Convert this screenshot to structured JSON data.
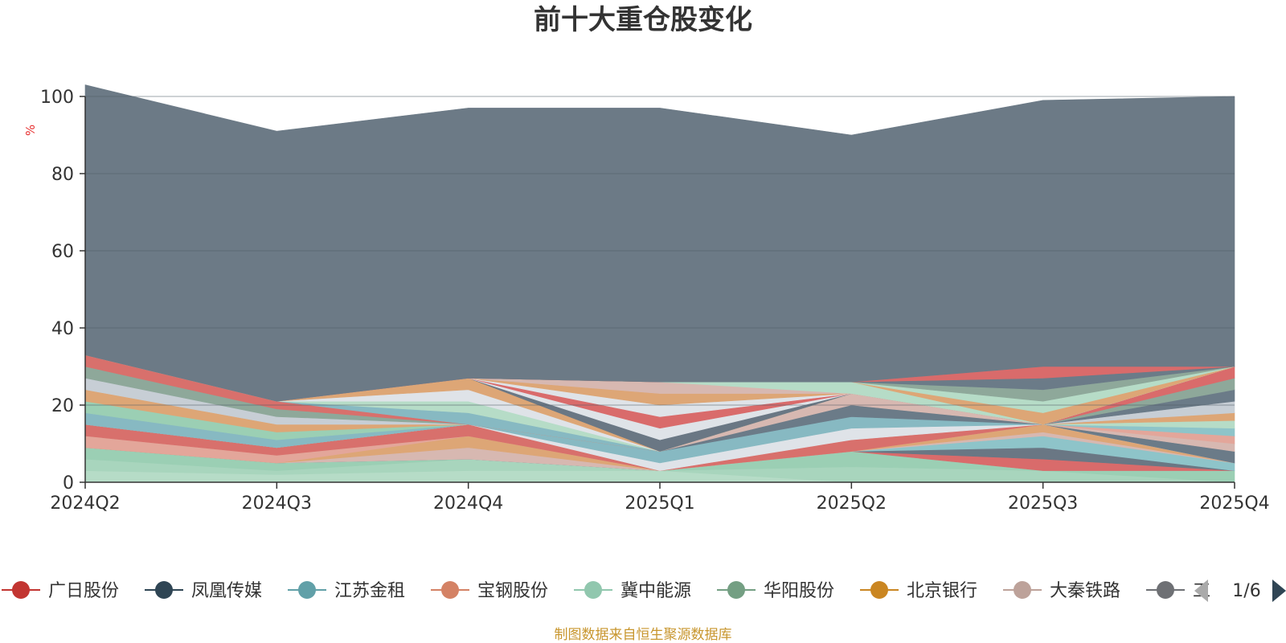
{
  "chart_data": {
    "type": "area",
    "title": "前十大重仓股变化",
    "ylabel": "%",
    "ylim": [
      0,
      100
    ],
    "yticks": [
      0,
      20,
      40,
      60,
      80,
      100
    ],
    "grid": true,
    "categories": [
      "2024Q2",
      "2024Q3",
      "2024Q4",
      "2025Q1",
      "2025Q2",
      "2025Q3",
      "2025Q4"
    ],
    "stacked_series": [
      {
        "values": [
          3,
          2,
          3,
          3,
          0,
          0,
          0
        ],
        "color": "#b6dcc7"
      },
      {
        "values": [
          3,
          1,
          3,
          0,
          4,
          3,
          0
        ],
        "color": "#a8d5bd"
      },
      {
        "values": [
          3,
          2,
          0,
          0,
          4,
          0,
          3
        ],
        "color": "#9bcfb4"
      },
      {
        "values": [
          0,
          0,
          0,
          0,
          0,
          3,
          0
        ],
        "color": "#d96b6b"
      },
      {
        "values": [
          0,
          0,
          0,
          0,
          0,
          3,
          0
        ],
        "color": "#6a7784"
      },
      {
        "values": [
          0,
          0,
          0,
          0,
          0,
          3,
          2
        ],
        "color": "#8ec4c9"
      },
      {
        "values": [
          0,
          0,
          3,
          0,
          0,
          1,
          0
        ],
        "color": "#d7b8b1"
      },
      {
        "values": [
          0,
          0,
          3,
          0,
          0,
          2,
          0
        ],
        "color": "#dda676"
      },
      {
        "values": [
          3,
          2,
          0,
          0,
          0,
          0,
          0
        ],
        "color": "#e3a69a"
      },
      {
        "values": [
          3,
          2,
          3,
          0,
          3,
          0,
          0
        ],
        "color": "#d8706c"
      },
      {
        "values": [
          0,
          0,
          0,
          2,
          3,
          0,
          0
        ],
        "color": "#dfe3e8"
      },
      {
        "values": [
          0,
          0,
          0,
          3,
          3,
          0,
          0
        ],
        "color": "#87b9c2"
      },
      {
        "values": [
          0,
          0,
          0,
          0,
          3,
          0,
          3
        ],
        "color": "#6b7b88"
      },
      {
        "values": [
          0,
          0,
          0,
          0,
          3,
          0,
          2
        ],
        "color": "#d7b8b1"
      },
      {
        "values": [
          0,
          0,
          0,
          0,
          0,
          0,
          2
        ],
        "color": "#e3a69a"
      },
      {
        "values": [
          0,
          0,
          0,
          0,
          0,
          0,
          2
        ],
        "color": "#8ec4c9"
      },
      {
        "values": [
          0,
          0,
          0,
          0,
          0,
          0,
          2
        ],
        "color": "#b6dcc7"
      },
      {
        "values": [
          0,
          0,
          0,
          0,
          0,
          0,
          2
        ],
        "color": "#dda676"
      },
      {
        "values": [
          0,
          0,
          0,
          0,
          0,
          0,
          3
        ],
        "color": "#c7ced5"
      },
      {
        "values": [
          0,
          0,
          0,
          0,
          0,
          0,
          3
        ],
        "color": "#6b7b88"
      },
      {
        "values": [
          0,
          0,
          0,
          0,
          0,
          0,
          3
        ],
        "color": "#8ea89a"
      },
      {
        "values": [
          0,
          0,
          0,
          0,
          0,
          0,
          3
        ],
        "color": "#d96b6b"
      },
      {
        "values": [
          0,
          0,
          0,
          0,
          0,
          0,
          0
        ],
        "color": "#9cc6b0"
      },
      {
        "values": [
          0,
          0,
          0,
          0,
          0,
          0,
          0
        ],
        "color": "#87b9c2"
      },
      {
        "values": [
          0,
          0,
          0,
          0,
          0,
          0,
          0
        ],
        "color": "#dfe3e8"
      },
      {
        "values": [
          0,
          0,
          0,
          0,
          0,
          0,
          0
        ],
        "color": "#6a7784"
      },
      {
        "values": [
          0,
          0,
          0,
          0,
          0,
          0,
          0
        ],
        "color": "#dda676"
      },
      {
        "values": [
          0,
          0,
          0,
          0,
          0,
          0,
          0
        ],
        "color": "#e3a69a"
      },
      {
        "values": [
          0,
          0,
          0,
          0,
          0,
          0,
          0
        ],
        "color": "#8ea89a"
      },
      {
        "values": [
          0,
          0,
          0,
          0,
          0,
          0,
          0
        ],
        "color": "#d8706c"
      },
      {
        "values": [
          0,
          0,
          0,
          0,
          0,
          0,
          0
        ],
        "color": "#9bcfb4"
      },
      {
        "values": [
          0,
          0,
          0,
          0,
          0,
          0,
          0
        ],
        "color": "#c7ced5"
      },
      {
        "values": [
          0,
          0,
          0,
          0,
          0,
          0,
          0
        ],
        "color": "#7d8891"
      },
      {
        "values": [
          0,
          0,
          0,
          0,
          0,
          0,
          0
        ],
        "color": "#aeb9c3"
      },
      {
        "values": [
          3,
          2,
          0,
          0,
          0,
          0,
          0
        ],
        "color": "#87b9c2"
      },
      {
        "values": [
          3,
          2,
          0,
          0,
          0,
          0,
          0
        ],
        "color": "#9bcfb4"
      },
      {
        "values": [
          3,
          2,
          0,
          0,
          0,
          0,
          0
        ],
        "color": "#dda676"
      },
      {
        "values": [
          3,
          2,
          0,
          0,
          0,
          0,
          0
        ],
        "color": "#c7ced5"
      },
      {
        "values": [
          3,
          2,
          0,
          0,
          0,
          0,
          0
        ],
        "color": "#8ea89a"
      },
      {
        "values": [
          3,
          2,
          0,
          0,
          0,
          0,
          0
        ],
        "color": "#d8706c"
      },
      {
        "values": [
          0,
          0,
          3,
          0,
          0,
          0,
          0
        ],
        "color": "#87b9c2"
      },
      {
        "values": [
          0,
          0,
          3,
          0,
          0,
          0,
          0
        ],
        "color": "#b6dcc7"
      },
      {
        "values": [
          0,
          0,
          3,
          0,
          0,
          0,
          0
        ],
        "color": "#dfe3e8"
      },
      {
        "values": [
          0,
          0,
          3,
          0,
          0,
          0,
          0
        ],
        "color": "#dda676"
      },
      {
        "values": [
          0,
          0,
          0,
          3,
          0,
          0,
          0
        ],
        "color": "#6a7784"
      },
      {
        "values": [
          0,
          0,
          0,
          3,
          0,
          0,
          0
        ],
        "color": "#dfe3e8"
      },
      {
        "values": [
          0,
          0,
          0,
          3,
          0,
          0,
          0
        ],
        "color": "#d96b6b"
      },
      {
        "values": [
          0,
          0,
          0,
          3,
          0,
          0,
          0
        ],
        "color": "#dfe3e8"
      },
      {
        "values": [
          0,
          0,
          0,
          3,
          0,
          0,
          0
        ],
        "color": "#dda676"
      },
      {
        "values": [
          0,
          0,
          0,
          3,
          0,
          0,
          0
        ],
        "color": "#d7b8b1"
      },
      {
        "values": [
          0,
          0,
          0,
          0,
          3,
          0,
          0
        ],
        "color": "#b6dcc7"
      },
      {
        "values": [
          0,
          0,
          0,
          0,
          0,
          3,
          0
        ],
        "color": "#dda676"
      },
      {
        "values": [
          0,
          0,
          0,
          0,
          0,
          3,
          0
        ],
        "color": "#b6dcc7"
      },
      {
        "values": [
          0,
          0,
          0,
          0,
          0,
          3,
          0
        ],
        "color": "#8ea89a"
      },
      {
        "values": [
          0,
          0,
          0,
          0,
          0,
          3,
          0
        ],
        "color": "#6b7b88"
      },
      {
        "values": [
          0,
          0,
          0,
          0,
          0,
          3,
          0
        ],
        "color": "#d96b6b"
      },
      {
        "values": [
          70,
          70,
          70,
          71,
          64,
          69,
          70
        ],
        "color": "#6c7a86"
      }
    ],
    "legend": {
      "position": "bottom",
      "items": [
        {
          "name": "广日股份",
          "color": "#c23531"
        },
        {
          "name": "凤凰传媒",
          "color": "#2f4554"
        },
        {
          "name": "江苏金租",
          "color": "#61a0a8"
        },
        {
          "name": "宝钢股份",
          "color": "#d48265"
        },
        {
          "name": "冀中能源",
          "color": "#91c7ae"
        },
        {
          "name": "华阳股份",
          "color": "#749f83"
        },
        {
          "name": "北京银行",
          "color": "#ca8622"
        },
        {
          "name": "大秦铁路",
          "color": "#bda29a"
        },
        {
          "name": "工",
          "color": "#6e7074"
        }
      ],
      "page": "1/6"
    }
  },
  "colors": {
    "axis": "#333333",
    "grid": "#4f5b66",
    "unit": "#e63030",
    "source": "#c8962e",
    "arrow_disabled": "#aaaaaa",
    "arrow_active": "#2f4554"
  },
  "source_text": "制图数据来自恒生聚源数据库"
}
